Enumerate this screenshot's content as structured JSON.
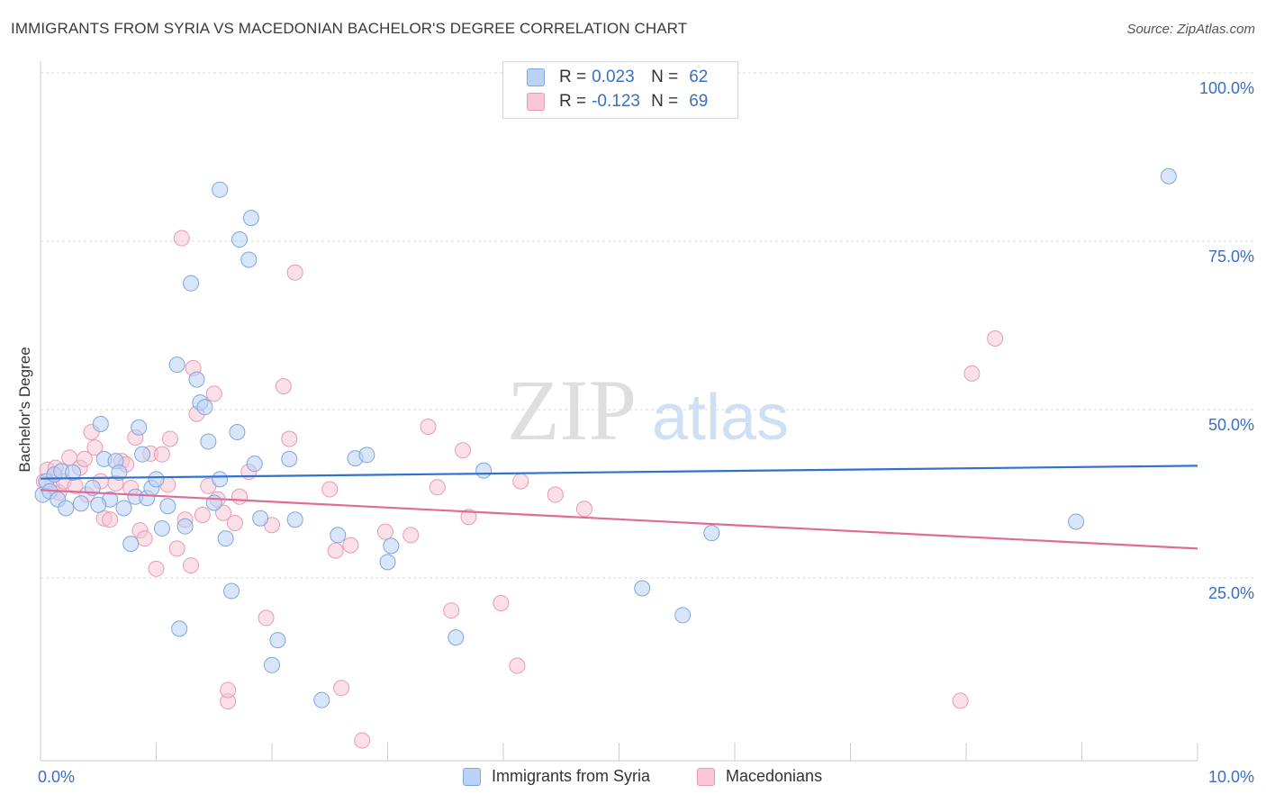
{
  "title": "IMMIGRANTS FROM SYRIA VS MACEDONIAN BACHELOR'S DEGREE CORRELATION CHART",
  "source": "Source: ZipAtlas.com",
  "watermark": {
    "zip": "ZIP",
    "atlas": "atlas"
  },
  "legend_top": [
    {
      "r_label": "R =",
      "r_value": "0.023",
      "n_label": "N =",
      "n_value": "62"
    },
    {
      "r_label": "R =",
      "r_value": "-0.123",
      "n_label": "N =",
      "n_value": "69"
    }
  ],
  "legend_bottom": [
    "Immigrants from Syria",
    "Macedonians"
  ],
  "colors": {
    "blue_fill": "#b9d2f5",
    "blue_stroke": "#7ea6dd",
    "blue_line": "#2f72d0",
    "pink_fill": "#f8c6d5",
    "pink_stroke": "#e99ab3",
    "pink_line": "#e06c96",
    "axis_text": "#3a6fc4",
    "grid": "#d9d9d9"
  },
  "chart_data": {
    "type": "scatter",
    "title": "IMMIGRANTS FROM SYRIA VS MACEDONIAN BACHELOR'S DEGREE CORRELATION CHART",
    "xlabel": "",
    "ylabel": "Bachelor's Degree",
    "xlim": [
      0,
      10
    ],
    "ylim": [
      0,
      102
    ],
    "x_tick_labels": [
      "0.0%",
      "10.0%"
    ],
    "y_tick_labels": [
      "25.0%",
      "50.0%",
      "75.0%",
      "100.0%"
    ],
    "y_ticks": [
      25,
      50,
      75,
      100
    ],
    "grid": true,
    "series": [
      {
        "name": "Immigrants from Syria",
        "r": 0.023,
        "n": 62,
        "trend": [
          [
            0,
            41.9
          ],
          [
            10,
            43.8
          ]
        ],
        "points": [
          [
            0.02,
            39.5
          ],
          [
            0.05,
            41.5
          ],
          [
            0.08,
            40.0
          ],
          [
            0.12,
            42.5
          ],
          [
            0.15,
            38.8
          ],
          [
            0.18,
            43.0
          ],
          [
            0.22,
            37.5
          ],
          [
            0.28,
            42.8
          ],
          [
            0.35,
            38.2
          ],
          [
            0.45,
            40.5
          ],
          [
            0.52,
            50.0
          ],
          [
            0.55,
            44.8
          ],
          [
            0.6,
            38.8
          ],
          [
            0.65,
            44.5
          ],
          [
            0.68,
            42.8
          ],
          [
            0.72,
            37.5
          ],
          [
            0.78,
            32.2
          ],
          [
            0.82,
            39.2
          ],
          [
            0.85,
            49.5
          ],
          [
            0.88,
            45.5
          ],
          [
            0.92,
            39.0
          ],
          [
            0.96,
            40.5
          ],
          [
            1.0,
            41.8
          ],
          [
            1.05,
            34.5
          ],
          [
            1.1,
            37.8
          ],
          [
            1.18,
            58.8
          ],
          [
            1.2,
            19.6
          ],
          [
            1.25,
            34.8
          ],
          [
            1.3,
            70.9
          ],
          [
            1.35,
            56.6
          ],
          [
            1.38,
            53.2
          ],
          [
            1.42,
            52.5
          ],
          [
            1.45,
            47.4
          ],
          [
            1.5,
            38.3
          ],
          [
            1.55,
            41.8
          ],
          [
            1.6,
            33.0
          ],
          [
            1.65,
            25.2
          ],
          [
            1.7,
            48.8
          ],
          [
            1.8,
            74.4
          ],
          [
            1.85,
            44.1
          ],
          [
            1.9,
            36.0
          ],
          [
            2.0,
            14.2
          ],
          [
            2.05,
            17.9
          ],
          [
            2.15,
            44.8
          ],
          [
            2.2,
            35.8
          ],
          [
            2.43,
            9.0
          ],
          [
            2.57,
            33.5
          ],
          [
            2.72,
            44.9
          ],
          [
            2.82,
            45.4
          ],
          [
            3.0,
            29.5
          ],
          [
            3.03,
            31.9
          ],
          [
            3.59,
            18.3
          ],
          [
            3.83,
            43.1
          ],
          [
            1.55,
            84.8
          ],
          [
            1.72,
            77.4
          ],
          [
            1.82,
            80.6
          ],
          [
            5.2,
            25.6
          ],
          [
            5.55,
            21.6
          ],
          [
            5.8,
            33.8
          ],
          [
            8.95,
            35.5
          ],
          [
            9.75,
            86.8
          ],
          [
            0.5,
            38.0
          ]
        ]
      },
      {
        "name": "Macedonians",
        "r": -0.123,
        "n": 69,
        "trend": [
          [
            0,
            40.2
          ],
          [
            10,
            31.5
          ]
        ],
        "points": [
          [
            0.03,
            41.5
          ],
          [
            0.06,
            43.2
          ],
          [
            0.1,
            40.8
          ],
          [
            0.13,
            43.5
          ],
          [
            0.16,
            39.8
          ],
          [
            0.2,
            41.5
          ],
          [
            0.25,
            45.0
          ],
          [
            0.3,
            40.8
          ],
          [
            0.34,
            43.5
          ],
          [
            0.38,
            44.8
          ],
          [
            0.4,
            39.5
          ],
          [
            0.44,
            48.8
          ],
          [
            0.47,
            46.5
          ],
          [
            0.52,
            41.5
          ],
          [
            0.55,
            36.0
          ],
          [
            0.6,
            35.8
          ],
          [
            0.65,
            41.2
          ],
          [
            0.7,
            44.5
          ],
          [
            0.74,
            44.0
          ],
          [
            0.78,
            40.5
          ],
          [
            0.82,
            48.0
          ],
          [
            0.86,
            34.2
          ],
          [
            0.9,
            33.0
          ],
          [
            0.95,
            45.6
          ],
          [
            1.0,
            28.5
          ],
          [
            1.05,
            45.5
          ],
          [
            1.1,
            41.0
          ],
          [
            1.12,
            47.8
          ],
          [
            1.18,
            31.5
          ],
          [
            1.22,
            77.6
          ],
          [
            1.25,
            35.8
          ],
          [
            1.3,
            29.0
          ],
          [
            1.32,
            58.3
          ],
          [
            1.35,
            51.5
          ],
          [
            1.4,
            36.5
          ],
          [
            1.45,
            40.8
          ],
          [
            1.5,
            54.5
          ],
          [
            1.53,
            38.8
          ],
          [
            1.58,
            36.8
          ],
          [
            1.62,
            8.8
          ],
          [
            1.68,
            35.3
          ],
          [
            1.72,
            39.2
          ],
          [
            1.8,
            42.9
          ],
          [
            1.95,
            21.2
          ],
          [
            2.0,
            35.0
          ],
          [
            2.1,
            55.6
          ],
          [
            2.15,
            47.8
          ],
          [
            2.2,
            72.5
          ],
          [
            2.5,
            40.3
          ],
          [
            2.55,
            31.2
          ],
          [
            2.6,
            10.8
          ],
          [
            2.68,
            32.0
          ],
          [
            2.78,
            3.0
          ],
          [
            2.98,
            34.0
          ],
          [
            3.2,
            33.5
          ],
          [
            3.35,
            49.6
          ],
          [
            3.43,
            40.6
          ],
          [
            3.55,
            22.3
          ],
          [
            3.65,
            46.1
          ],
          [
            3.7,
            36.2
          ],
          [
            3.98,
            23.4
          ],
          [
            4.12,
            14.1
          ],
          [
            4.15,
            41.5
          ],
          [
            4.45,
            39.5
          ],
          [
            4.7,
            37.4
          ],
          [
            7.95,
            8.9
          ],
          [
            8.05,
            57.5
          ],
          [
            8.25,
            62.7
          ],
          [
            1.62,
            10.5
          ]
        ]
      }
    ]
  }
}
